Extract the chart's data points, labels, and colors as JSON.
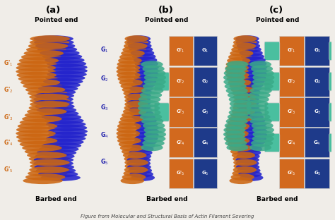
{
  "fig_width": 4.74,
  "fig_height": 3.12,
  "dpi": 100,
  "bg_color": "#f0ede8",
  "panel_labels": [
    "(a)",
    "(b)",
    "(c)"
  ],
  "pointed_end": "Pointed end",
  "barbed_end": "Barbed end",
  "schematic_blue": "#1e3a8a",
  "schematic_orange": "#d2691e",
  "schematic_teal": "#4abf9f",
  "caption_text": "Figure from Molecular and Structural Basis of Actin Filament Severing",
  "caption_fontsize": 5.0,
  "label_fontsize": 7.0,
  "title_fontsize": 6.5,
  "panel_label_fontsize": 9.5,
  "blue_protein": "#2222cc",
  "orange_protein": "#cc6611",
  "teal_protein": "#3aaa88",
  "label_blue": "#1a1aaa",
  "label_orange": "#cc6611"
}
